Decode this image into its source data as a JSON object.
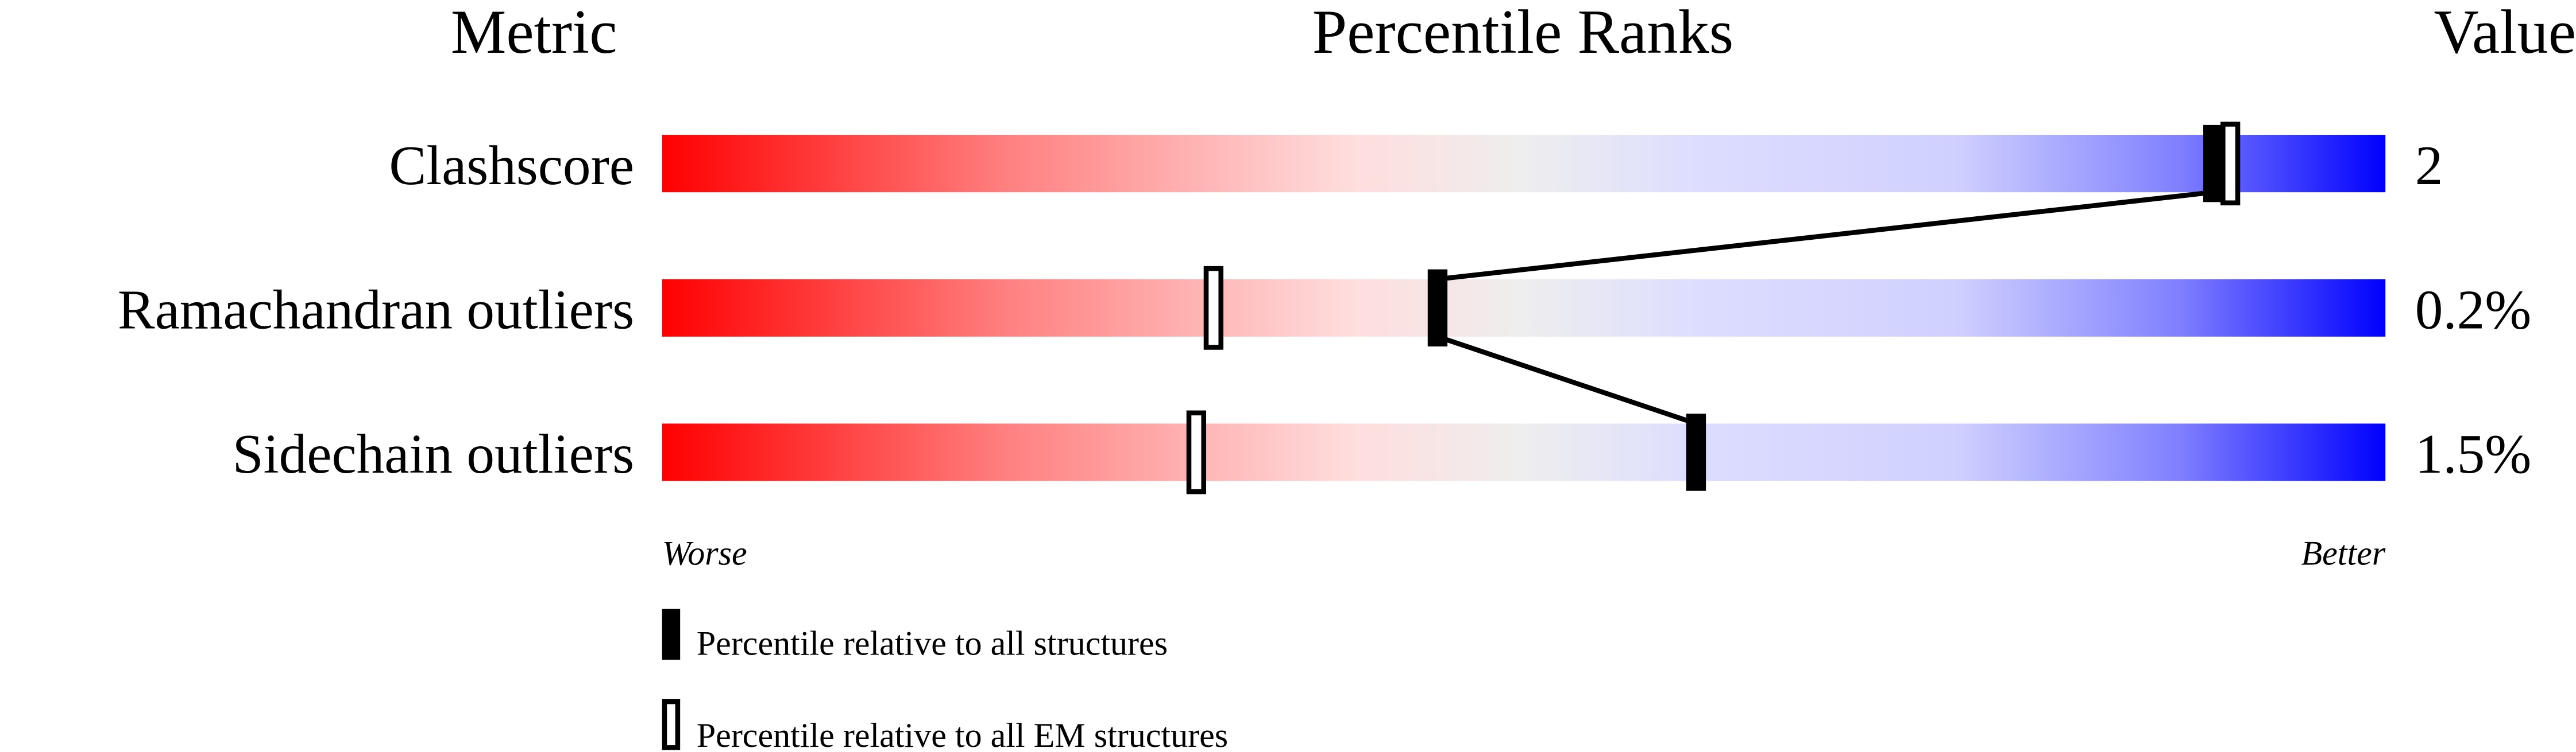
{
  "chart_data": {
    "type": "percentile-bar",
    "headers": {
      "metric": "Metric",
      "percentile": "Percentile Ranks",
      "value": "Value"
    },
    "xlim": [
      0,
      100
    ],
    "axis_labels": {
      "left": "Worse",
      "right": "Better"
    },
    "gradient_colors": [
      "#ff0000",
      "#ff8080",
      "#ffdddd",
      "#eeeeee",
      "#ddddff",
      "#8080ff",
      "#0000ff"
    ],
    "rows": [
      {
        "metric": "Clashscore",
        "value": "2",
        "percentile_all": 90,
        "percentile_em": 91
      },
      {
        "metric": "Ramachandran outliers",
        "value": "0.2%",
        "percentile_all": 45,
        "percentile_em": 32
      },
      {
        "metric": "Sidechain outliers",
        "value": "1.5%",
        "percentile_all": 60,
        "percentile_em": 31
      }
    ],
    "legend": [
      {
        "marker": "filled",
        "label": "Percentile relative to all structures"
      },
      {
        "marker": "open",
        "label": "Percentile relative to all EM structures"
      }
    ]
  }
}
